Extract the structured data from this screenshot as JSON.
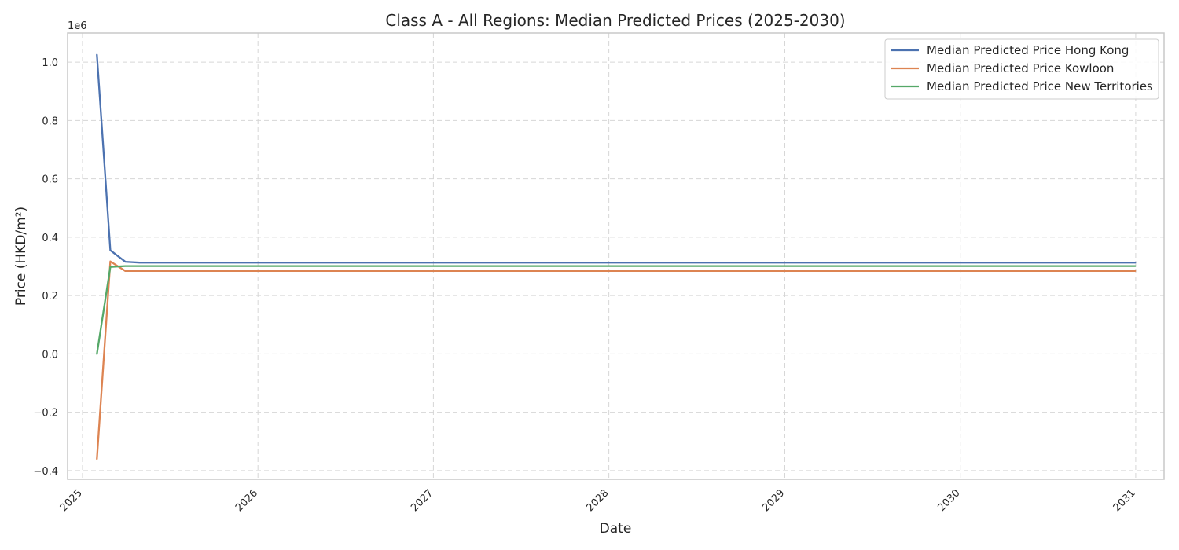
{
  "chart_data": {
    "type": "line",
    "title": "Class A - All Regions: Median Predicted Prices (2025-2030)",
    "xlabel": "Date",
    "ylabel": "Price (HKD/m²)",
    "y_offset_label": "1e6",
    "xlim": [
      "2024-12-01",
      "2031-03-01"
    ],
    "ylim": [
      -0.43,
      1.1
    ],
    "x_ticks": [
      "2025-01-01",
      "2026-01-01",
      "2027-01-01",
      "2028-01-01",
      "2029-01-01",
      "2030-01-01",
      "2031-01-01"
    ],
    "x_tick_labels": [
      "2025",
      "2026",
      "2027",
      "2028",
      "2029",
      "2030",
      "2031"
    ],
    "y_ticks": [
      -0.4,
      -0.2,
      0.0,
      0.2,
      0.4,
      0.6,
      0.8,
      1.0
    ],
    "y_tick_labels": [
      "−0.4",
      "−0.2",
      "0.0",
      "0.2",
      "0.4",
      "0.6",
      "0.8",
      "1.0"
    ],
    "grid": true,
    "legend_position": "top-right",
    "x": [
      "2025-01-31",
      "2025-02-28",
      "2025-03-31",
      "2025-04-30",
      "2025-05-31",
      "2025-06-30",
      "2030-12-31"
    ],
    "series": [
      {
        "name": "Median Predicted Price Hong Kong",
        "color": "#4c72b0",
        "values": [
          1.025,
          0.355,
          0.316,
          0.313,
          0.313,
          0.313,
          0.313
        ]
      },
      {
        "name": "Median Predicted Price Kowloon",
        "color": "#dd8452",
        "values": [
          -0.36,
          0.317,
          0.284,
          0.284,
          0.284,
          0.284,
          0.284
        ]
      },
      {
        "name": "Median Predicted Price New Territories",
        "color": "#55a868",
        "values": [
          0.0,
          0.298,
          0.301,
          0.301,
          0.301,
          0.301,
          0.301
        ]
      }
    ]
  }
}
